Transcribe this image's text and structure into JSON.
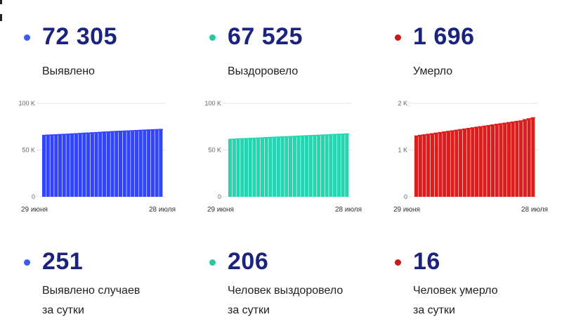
{
  "stats_top": [
    {
      "value": "72 305",
      "label": "Выявлено",
      "color": "#3d5af1"
    },
    {
      "value": "67 525",
      "label": "Выздоровело",
      "color": "#2ec4a6"
    },
    {
      "value": "1 696",
      "label": "Умерло",
      "color": "#c41a1a"
    }
  ],
  "stats_bottom": [
    {
      "value": "251",
      "label_line1": "Выявлено случаев",
      "label_line2": "за сутки",
      "color": "#3d5af1"
    },
    {
      "value": "206",
      "label_line1": "Человек выздоровело",
      "label_line2": "за сутки",
      "color": "#2ec4a6"
    },
    {
      "value": "16",
      "label_line1": "Человек умерло",
      "label_line2": "за сутки",
      "color": "#c41a1a"
    }
  ],
  "chart_data": [
    {
      "type": "bar",
      "color": "#3344ff",
      "ylim": [
        0,
        100000
      ],
      "yticks": [
        {
          "value": 0,
          "label": "0"
        },
        {
          "value": 50000,
          "label": "50 K"
        },
        {
          "value": 100000,
          "label": "100 K"
        }
      ],
      "xtick_labels": [
        "29 июня",
        "28 июля"
      ],
      "values": [
        65800,
        66000,
        66200,
        66400,
        66600,
        66800,
        67000,
        67250,
        67500,
        67750,
        68000,
        68250,
        68500,
        68750,
        69000,
        69250,
        69500,
        69700,
        69900,
        70100,
        70300,
        70500,
        70700,
        70900,
        71100,
        71300,
        71500,
        71700,
        71900,
        72100
      ]
    },
    {
      "type": "bar",
      "color": "#26d4b0",
      "ylim": [
        0,
        100000
      ],
      "yticks": [
        {
          "value": 0,
          "label": "0"
        },
        {
          "value": 50000,
          "label": "50 K"
        },
        {
          "value": 100000,
          "label": "100 K"
        }
      ],
      "xtick_labels": [
        "29 июня",
        "28 июля"
      ],
      "values": [
        61500,
        61700,
        61900,
        62100,
        62300,
        62500,
        62700,
        62900,
        63100,
        63300,
        63500,
        63700,
        63900,
        64100,
        64300,
        64500,
        64700,
        64900,
        65100,
        65300,
        65500,
        65700,
        65900,
        66100,
        66300,
        66500,
        66700,
        66900,
        67100,
        67300
      ]
    },
    {
      "type": "bar",
      "color": "#dd1c1c",
      "ylim": [
        0,
        2000
      ],
      "yticks": [
        {
          "value": 0,
          "label": "0"
        },
        {
          "value": 1000,
          "label": "1 K"
        },
        {
          "value": 2000,
          "label": "2 K"
        }
      ],
      "xtick_labels": [
        "29 июня",
        "28 июля"
      ],
      "values": [
        1300,
        1315,
        1325,
        1338,
        1350,
        1362,
        1375,
        1388,
        1400,
        1412,
        1425,
        1438,
        1450,
        1462,
        1475,
        1488,
        1500,
        1512,
        1525,
        1538,
        1550,
        1562,
        1575,
        1588,
        1600,
        1612,
        1625,
        1650,
        1670,
        1690
      ]
    }
  ]
}
